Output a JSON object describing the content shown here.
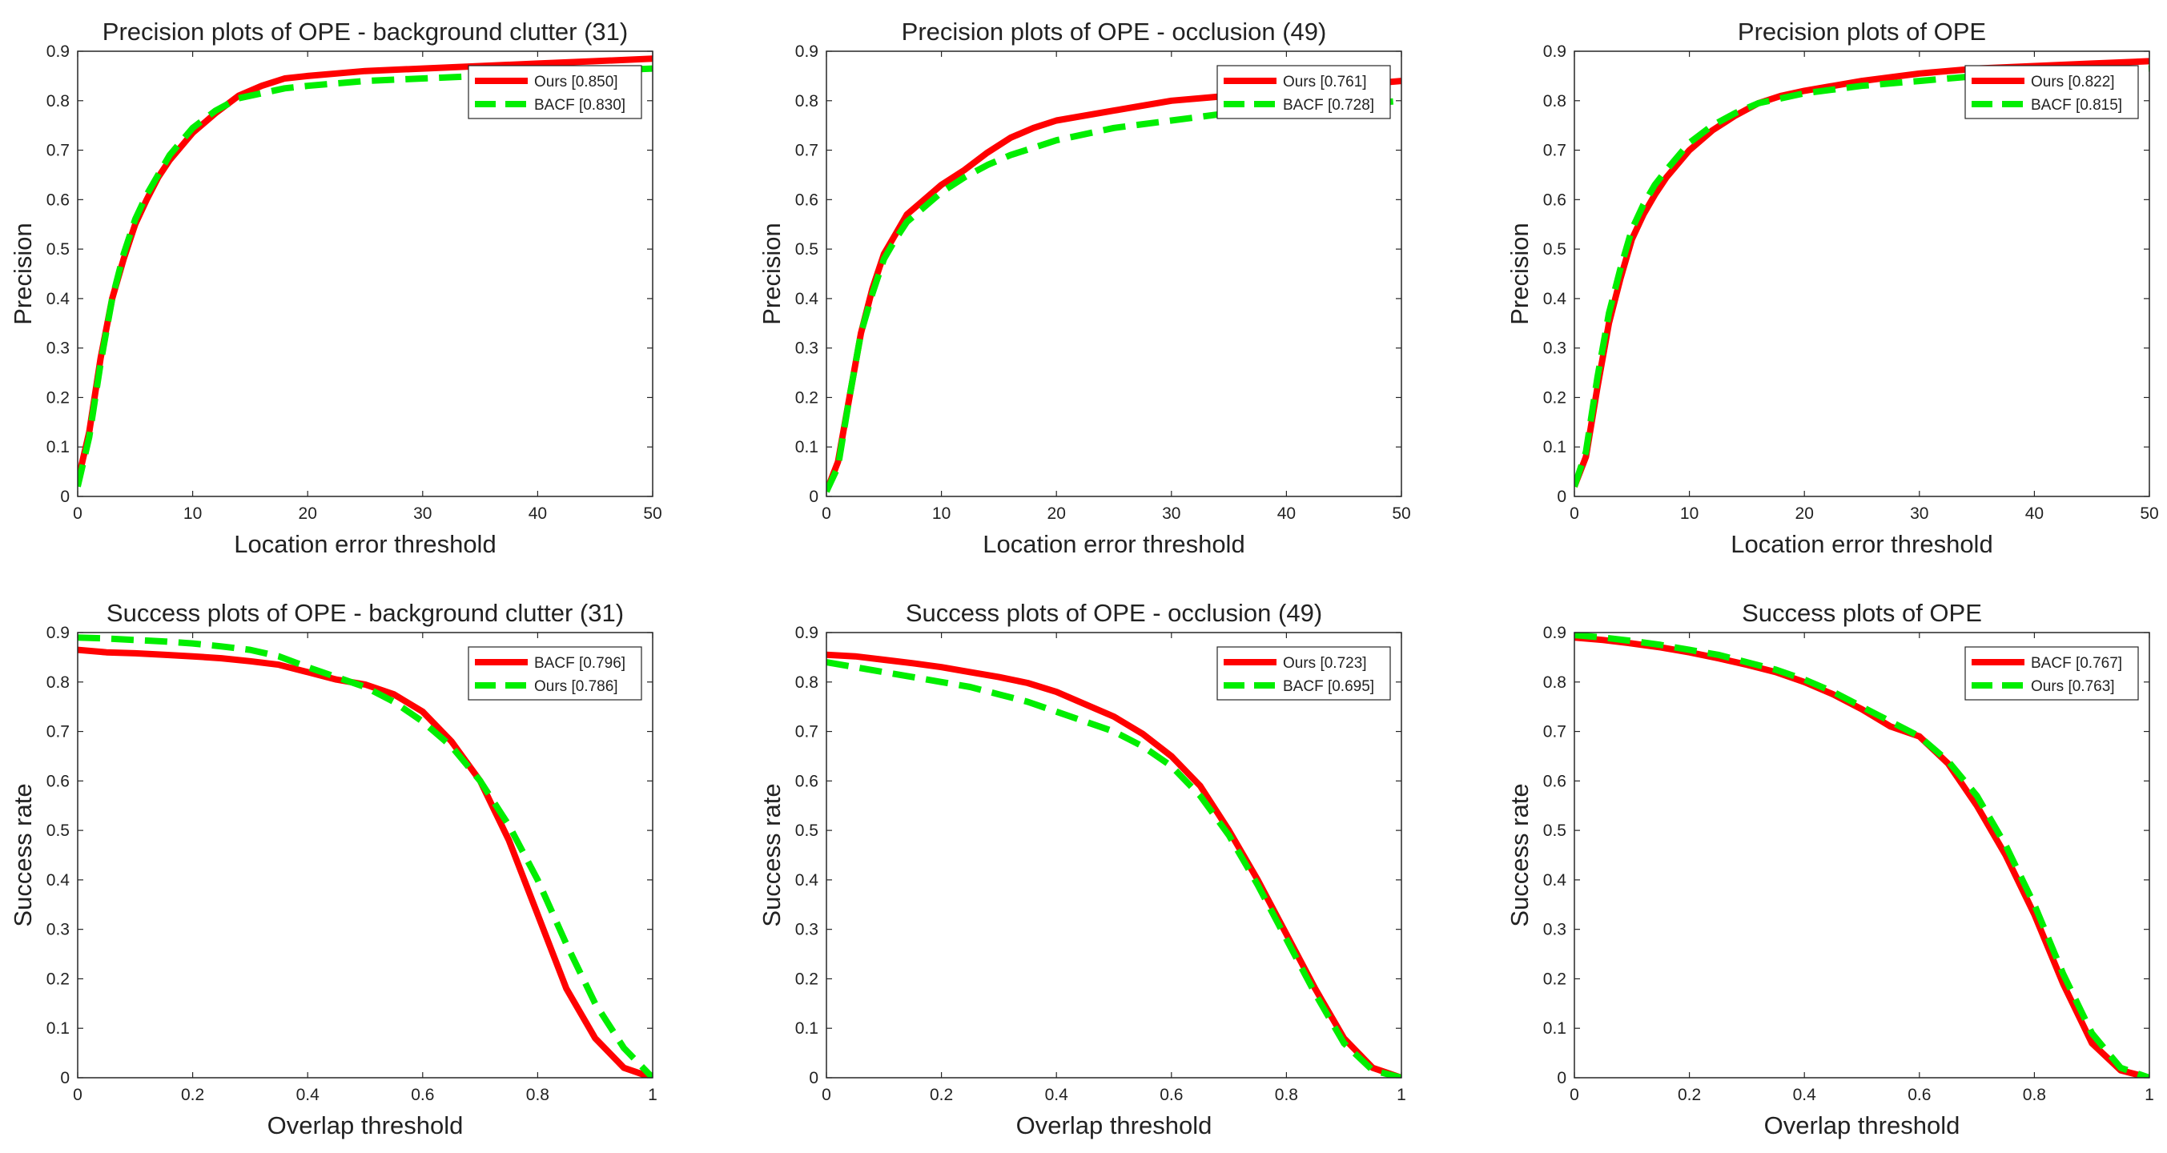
{
  "chart_data": [
    {
      "type": "line",
      "title": "Precision plots of OPE - background clutter (31)",
      "xlabel": "Location error threshold",
      "ylabel": "Precision",
      "xlim": [
        0,
        50
      ],
      "ylim": [
        0,
        0.9
      ],
      "xticks": [
        0,
        10,
        20,
        30,
        40,
        50
      ],
      "yticks": [
        0,
        0.1,
        0.2,
        0.3,
        0.4,
        0.5,
        0.6,
        0.7,
        0.8,
        0.9
      ],
      "legend_position": "top-right",
      "series": [
        {
          "name": "Ours [0.850]",
          "color": "#ff0000",
          "dash": "solid",
          "x": [
            0,
            1,
            2,
            3,
            4,
            5,
            6,
            7,
            8,
            10,
            12,
            14,
            16,
            18,
            20,
            25,
            30,
            35,
            40,
            45,
            50
          ],
          "y": [
            0.03,
            0.13,
            0.28,
            0.4,
            0.48,
            0.55,
            0.6,
            0.645,
            0.68,
            0.735,
            0.775,
            0.81,
            0.83,
            0.845,
            0.85,
            0.86,
            0.865,
            0.87,
            0.875,
            0.88,
            0.885
          ]
        },
        {
          "name": "BACF [0.830]",
          "color": "#00ee00",
          "dash": "dashed",
          "x": [
            0,
            1,
            2,
            3,
            4,
            5,
            6,
            7,
            8,
            10,
            12,
            14,
            16,
            18,
            20,
            25,
            30,
            35,
            40,
            45,
            50
          ],
          "y": [
            0.02,
            0.12,
            0.27,
            0.4,
            0.49,
            0.56,
            0.61,
            0.65,
            0.69,
            0.745,
            0.78,
            0.805,
            0.815,
            0.825,
            0.83,
            0.84,
            0.845,
            0.85,
            0.855,
            0.86,
            0.865
          ]
        }
      ]
    },
    {
      "type": "line",
      "title": "Precision plots of OPE - occlusion (49)",
      "xlabel": "Location error threshold",
      "ylabel": "Precision",
      "xlim": [
        0,
        50
      ],
      "ylim": [
        0,
        0.9
      ],
      "xticks": [
        0,
        10,
        20,
        30,
        40,
        50
      ],
      "yticks": [
        0,
        0.1,
        0.2,
        0.3,
        0.4,
        0.5,
        0.6,
        0.7,
        0.8,
        0.9
      ],
      "legend_position": "top-right",
      "series": [
        {
          "name": "Ours [0.761]",
          "color": "#ff0000",
          "dash": "solid",
          "x": [
            0,
            1,
            2,
            3,
            4,
            5,
            6,
            7,
            8,
            10,
            12,
            14,
            16,
            18,
            20,
            25,
            30,
            35,
            40,
            45,
            50
          ],
          "y": [
            0.01,
            0.07,
            0.2,
            0.33,
            0.42,
            0.49,
            0.53,
            0.57,
            0.59,
            0.63,
            0.66,
            0.695,
            0.725,
            0.745,
            0.76,
            0.78,
            0.8,
            0.81,
            0.82,
            0.83,
            0.84
          ]
        },
        {
          "name": "BACF [0.728]",
          "color": "#00ee00",
          "dash": "dashed",
          "x": [
            0,
            1,
            2,
            3,
            4,
            5,
            6,
            7,
            8,
            10,
            12,
            14,
            16,
            18,
            20,
            25,
            30,
            35,
            40,
            45,
            50
          ],
          "y": [
            0.01,
            0.06,
            0.2,
            0.33,
            0.41,
            0.48,
            0.52,
            0.555,
            0.575,
            0.615,
            0.645,
            0.67,
            0.69,
            0.705,
            0.72,
            0.745,
            0.76,
            0.775,
            0.785,
            0.79,
            0.8
          ]
        }
      ]
    },
    {
      "type": "line",
      "title": "Precision plots of OPE",
      "xlabel": "Location error threshold",
      "ylabel": "Precision",
      "xlim": [
        0,
        50
      ],
      "ylim": [
        0,
        0.9
      ],
      "xticks": [
        0,
        10,
        20,
        30,
        40,
        50
      ],
      "yticks": [
        0,
        0.1,
        0.2,
        0.3,
        0.4,
        0.5,
        0.6,
        0.7,
        0.8,
        0.9
      ],
      "legend_position": "top-right",
      "series": [
        {
          "name": "Ours [0.822]",
          "color": "#ff0000",
          "dash": "solid",
          "x": [
            0,
            1,
            2,
            3,
            4,
            5,
            6,
            7,
            8,
            10,
            12,
            14,
            16,
            18,
            20,
            25,
            30,
            35,
            40,
            45,
            50
          ],
          "y": [
            0.02,
            0.08,
            0.22,
            0.35,
            0.44,
            0.52,
            0.57,
            0.61,
            0.645,
            0.7,
            0.74,
            0.77,
            0.795,
            0.81,
            0.82,
            0.84,
            0.855,
            0.865,
            0.87,
            0.875,
            0.88
          ]
        },
        {
          "name": "BACF [0.815]",
          "color": "#00ee00",
          "dash": "dashed",
          "x": [
            0,
            1,
            2,
            3,
            4,
            5,
            6,
            7,
            8,
            10,
            12,
            14,
            16,
            18,
            20,
            25,
            30,
            35,
            40,
            45,
            50
          ],
          "y": [
            0.02,
            0.09,
            0.24,
            0.37,
            0.46,
            0.54,
            0.59,
            0.63,
            0.66,
            0.715,
            0.75,
            0.775,
            0.795,
            0.805,
            0.815,
            0.83,
            0.84,
            0.85,
            0.855,
            0.86,
            0.865
          ]
        }
      ]
    },
    {
      "type": "line",
      "title": "Success plots of OPE - background clutter (31)",
      "xlabel": "Overlap threshold",
      "ylabel": "Success rate",
      "xlim": [
        0,
        1
      ],
      "ylim": [
        0,
        0.9
      ],
      "xticks": [
        0,
        0.2,
        0.4,
        0.6,
        0.8,
        1
      ],
      "yticks": [
        0,
        0.1,
        0.2,
        0.3,
        0.4,
        0.5,
        0.6,
        0.7,
        0.8,
        0.9
      ],
      "legend_position": "top-right",
      "series": [
        {
          "name": "BACF [0.796]",
          "color": "#ff0000",
          "dash": "solid",
          "x": [
            0,
            0.05,
            0.1,
            0.15,
            0.2,
            0.25,
            0.3,
            0.35,
            0.4,
            0.45,
            0.5,
            0.55,
            0.6,
            0.65,
            0.7,
            0.75,
            0.8,
            0.85,
            0.9,
            0.95,
            1
          ],
          "y": [
            0.865,
            0.86,
            0.858,
            0.855,
            0.852,
            0.848,
            0.842,
            0.835,
            0.82,
            0.805,
            0.795,
            0.775,
            0.74,
            0.68,
            0.6,
            0.48,
            0.33,
            0.18,
            0.08,
            0.02,
            0.0
          ]
        },
        {
          "name": "Ours [0.786]",
          "color": "#00ee00",
          "dash": "dashed",
          "x": [
            0,
            0.05,
            0.1,
            0.15,
            0.2,
            0.25,
            0.3,
            0.35,
            0.4,
            0.45,
            0.5,
            0.55,
            0.6,
            0.65,
            0.7,
            0.75,
            0.8,
            0.85,
            0.9,
            0.95,
            1
          ],
          "y": [
            0.89,
            0.888,
            0.885,
            0.882,
            0.878,
            0.872,
            0.865,
            0.852,
            0.83,
            0.81,
            0.79,
            0.76,
            0.72,
            0.67,
            0.6,
            0.51,
            0.4,
            0.27,
            0.15,
            0.06,
            0.0
          ]
        }
      ]
    },
    {
      "type": "line",
      "title": "Success plots of OPE - occlusion (49)",
      "xlabel": "Overlap threshold",
      "ylabel": "Success rate",
      "xlim": [
        0,
        1
      ],
      "ylim": [
        0,
        0.9
      ],
      "xticks": [
        0,
        0.2,
        0.4,
        0.6,
        0.8,
        1
      ],
      "yticks": [
        0,
        0.1,
        0.2,
        0.3,
        0.4,
        0.5,
        0.6,
        0.7,
        0.8,
        0.9
      ],
      "legend_position": "top-right",
      "series": [
        {
          "name": "Ours [0.723]",
          "color": "#ff0000",
          "dash": "solid",
          "x": [
            0,
            0.05,
            0.1,
            0.15,
            0.2,
            0.25,
            0.3,
            0.35,
            0.4,
            0.45,
            0.5,
            0.55,
            0.6,
            0.65,
            0.7,
            0.75,
            0.8,
            0.85,
            0.9,
            0.95,
            1
          ],
          "y": [
            0.855,
            0.852,
            0.845,
            0.838,
            0.83,
            0.82,
            0.81,
            0.798,
            0.78,
            0.755,
            0.73,
            0.695,
            0.65,
            0.59,
            0.5,
            0.4,
            0.29,
            0.18,
            0.08,
            0.02,
            0.0
          ]
        },
        {
          "name": "BACF [0.695]",
          "color": "#00ee00",
          "dash": "dashed",
          "x": [
            0,
            0.05,
            0.1,
            0.15,
            0.2,
            0.25,
            0.3,
            0.35,
            0.4,
            0.45,
            0.5,
            0.55,
            0.6,
            0.65,
            0.7,
            0.75,
            0.8,
            0.85,
            0.9,
            0.95,
            1
          ],
          "y": [
            0.84,
            0.83,
            0.82,
            0.81,
            0.8,
            0.79,
            0.775,
            0.76,
            0.74,
            0.72,
            0.7,
            0.67,
            0.63,
            0.57,
            0.49,
            0.39,
            0.28,
            0.17,
            0.07,
            0.015,
            0.0
          ]
        }
      ]
    },
    {
      "type": "line",
      "title": "Success plots of OPE",
      "xlabel": "Overlap threshold",
      "ylabel": "Success rate",
      "xlim": [
        0,
        1
      ],
      "ylim": [
        0,
        0.9
      ],
      "xticks": [
        0,
        0.2,
        0.4,
        0.6,
        0.8,
        1
      ],
      "yticks": [
        0,
        0.1,
        0.2,
        0.3,
        0.4,
        0.5,
        0.6,
        0.7,
        0.8,
        0.9
      ],
      "legend_position": "top-right",
      "series": [
        {
          "name": "BACF [0.767]",
          "color": "#ff0000",
          "dash": "solid",
          "x": [
            0,
            0.05,
            0.1,
            0.15,
            0.2,
            0.25,
            0.3,
            0.35,
            0.4,
            0.45,
            0.5,
            0.55,
            0.6,
            0.65,
            0.7,
            0.75,
            0.8,
            0.85,
            0.9,
            0.95,
            1
          ],
          "y": [
            0.89,
            0.885,
            0.878,
            0.87,
            0.86,
            0.848,
            0.835,
            0.82,
            0.8,
            0.775,
            0.745,
            0.71,
            0.69,
            0.635,
            0.55,
            0.45,
            0.33,
            0.19,
            0.07,
            0.015,
            0.0
          ]
        },
        {
          "name": "Ours [0.763]",
          "color": "#00ee00",
          "dash": "dashed",
          "x": [
            0,
            0.05,
            0.1,
            0.15,
            0.2,
            0.25,
            0.3,
            0.35,
            0.4,
            0.45,
            0.5,
            0.55,
            0.6,
            0.65,
            0.7,
            0.75,
            0.8,
            0.85,
            0.9,
            0.95,
            1
          ],
          "y": [
            0.895,
            0.89,
            0.883,
            0.875,
            0.865,
            0.855,
            0.84,
            0.825,
            0.805,
            0.78,
            0.75,
            0.72,
            0.69,
            0.64,
            0.57,
            0.47,
            0.35,
            0.21,
            0.09,
            0.02,
            0.0
          ]
        }
      ]
    }
  ]
}
